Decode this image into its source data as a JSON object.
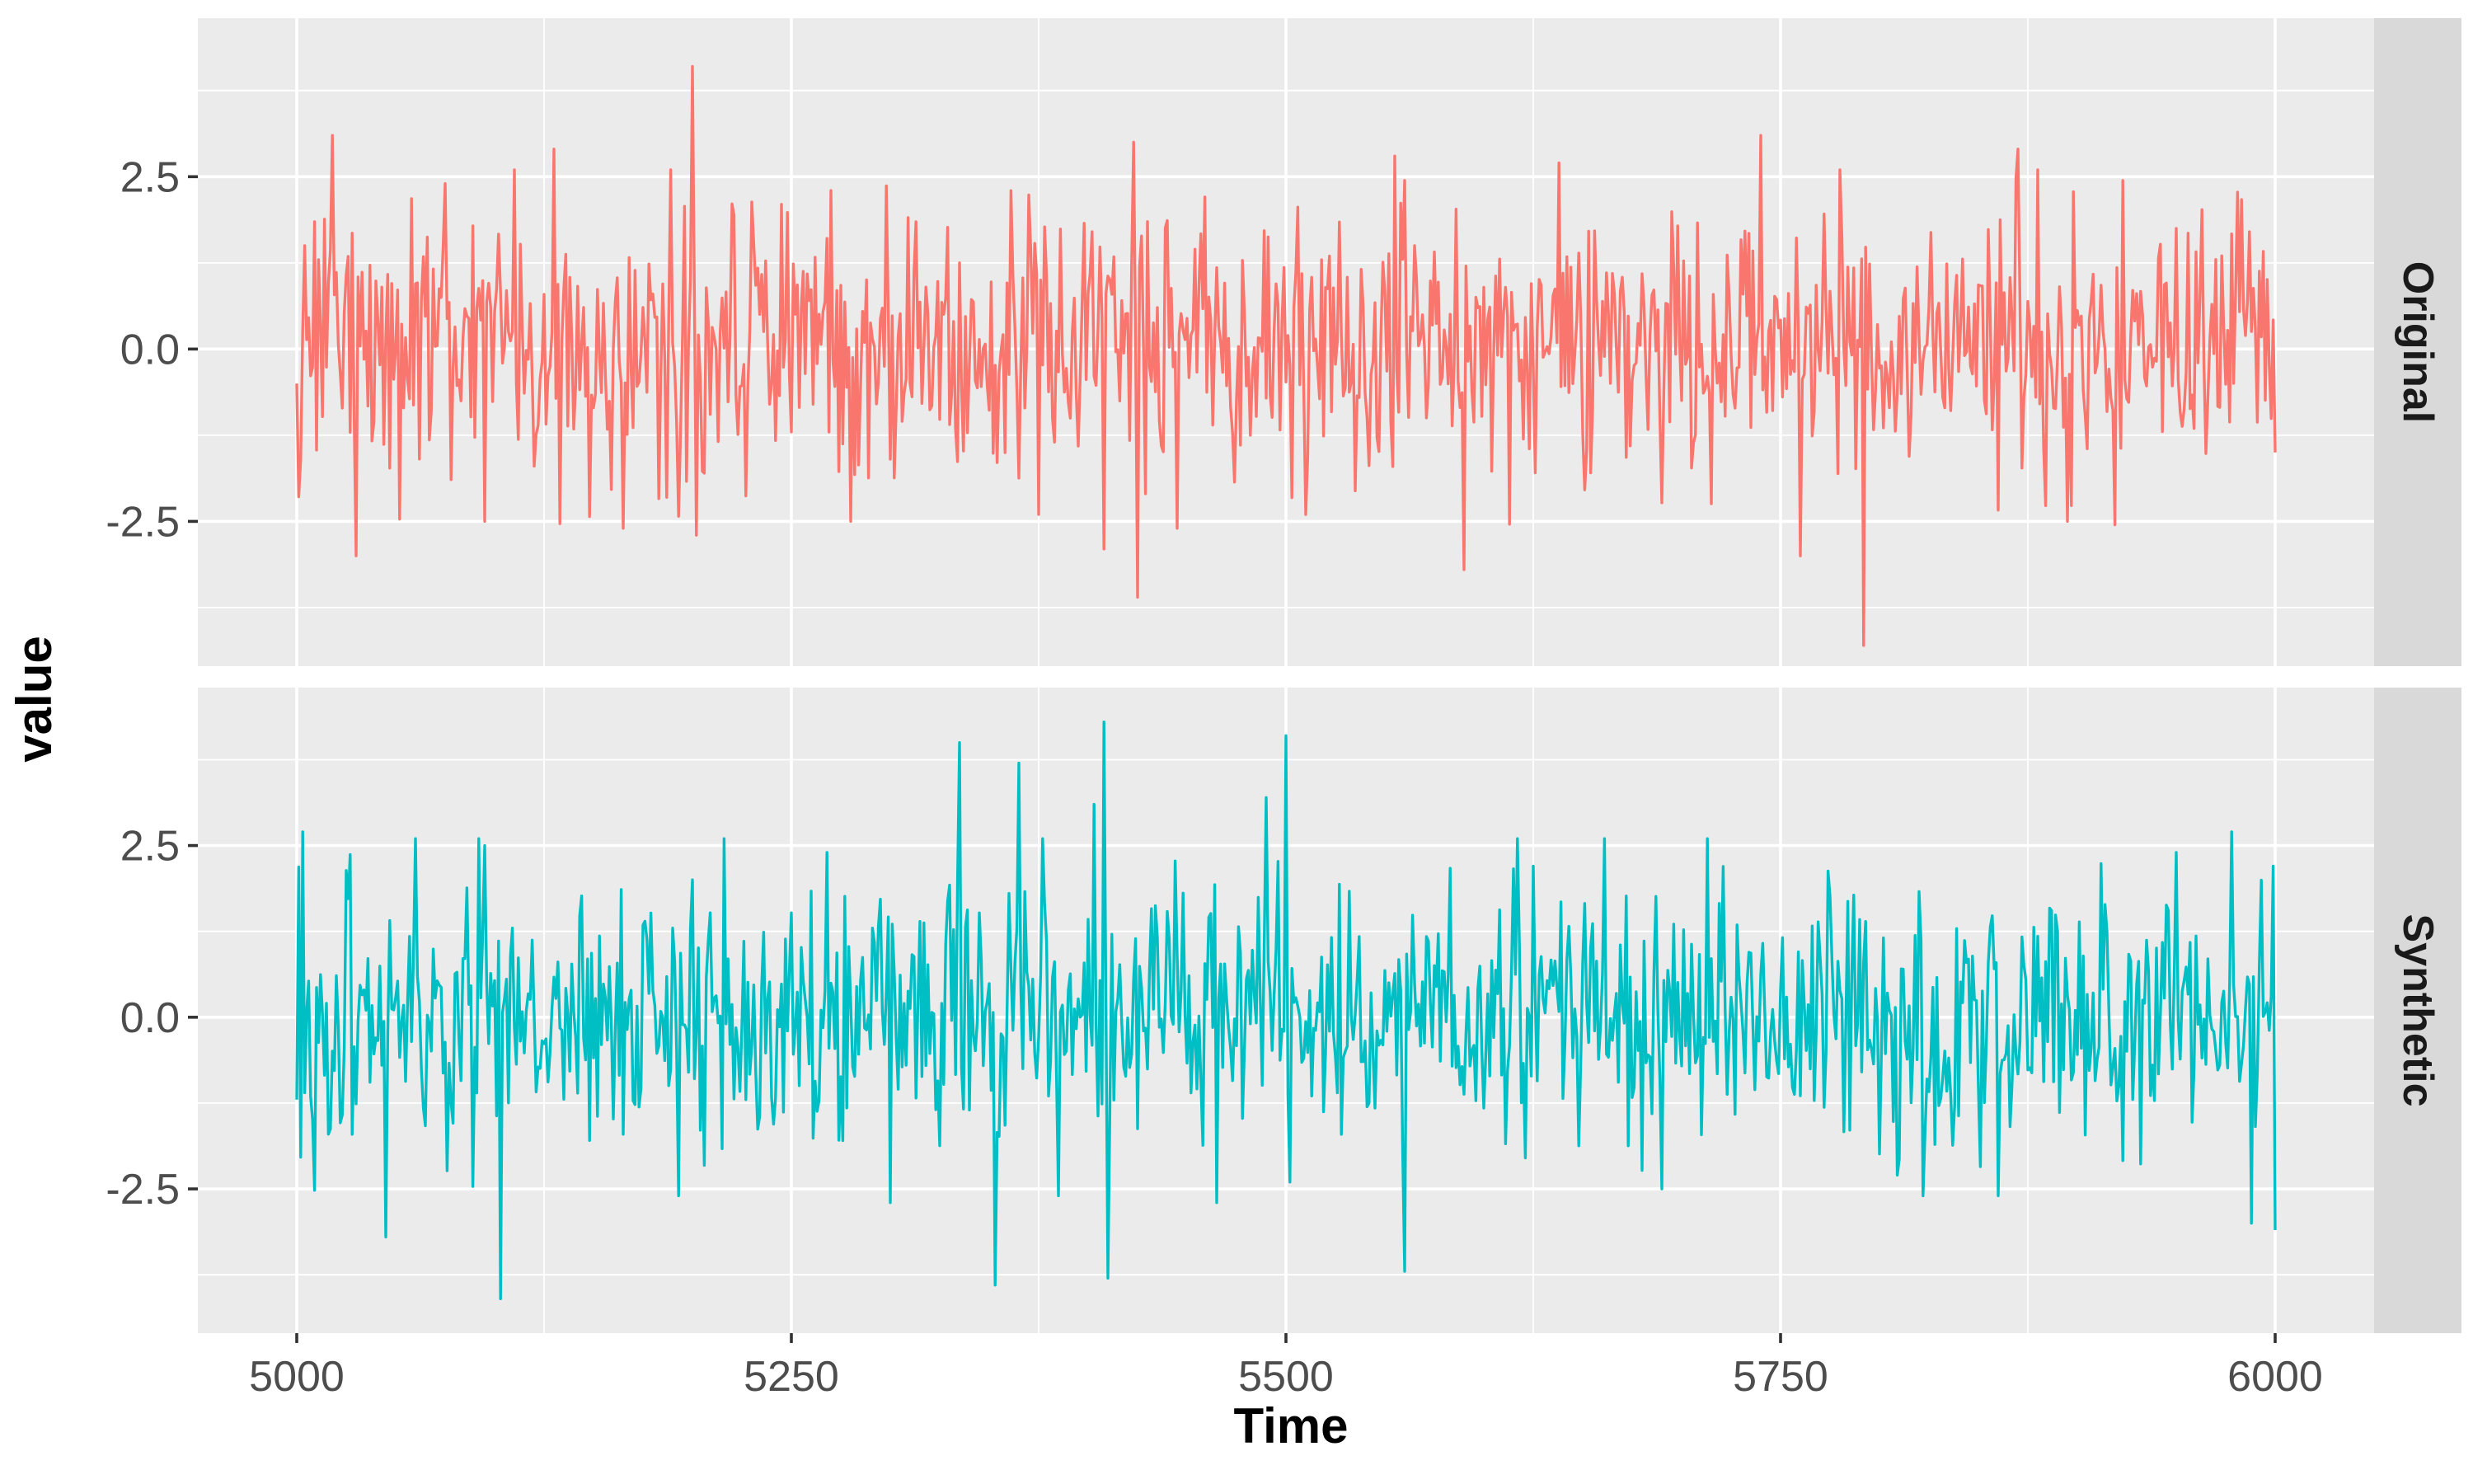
{
  "chart_data": {
    "type": "line",
    "facet": "rows",
    "xlabel": "Time",
    "ylabel": "value",
    "xlim": [
      4950,
      6050
    ],
    "ylim": [
      -4.6,
      4.8
    ],
    "x_ticks": [
      5000,
      5250,
      5500,
      5750,
      6000
    ],
    "x_tick_labels": [
      "5000",
      "5250",
      "5500",
      "5750",
      "6000"
    ],
    "y_ticks": [
      -2.5,
      0.0,
      2.5
    ],
    "y_tick_labels": [
      "-2.5",
      "0.0",
      "2.5"
    ],
    "grid": true,
    "legend": "none",
    "n_points": 1001,
    "x_start": 5000,
    "x_end": 6000,
    "panels": [
      {
        "strip_label": "Original",
        "color": "#F8766D",
        "summary": {
          "mean": 0.0,
          "sd": 1.0
        },
        "notable_points": [
          {
            "x": 5000,
            "y": -0.5
          },
          {
            "x": 5002,
            "y": -1.6
          },
          {
            "x": 5004,
            "y": 1.5
          },
          {
            "x": 5018,
            "y": 3.1
          },
          {
            "x": 5030,
            "y": -3.0
          },
          {
            "x": 5075,
            "y": 2.4
          },
          {
            "x": 5095,
            "y": -2.5
          },
          {
            "x": 5130,
            "y": 2.9
          },
          {
            "x": 5165,
            "y": -2.6
          },
          {
            "x": 5200,
            "y": 4.1
          },
          {
            "x": 5202,
            "y": -2.7
          },
          {
            "x": 5245,
            "y": 2.1
          },
          {
            "x": 5270,
            "y": 2.3
          },
          {
            "x": 5280,
            "y": -2.5
          },
          {
            "x": 5375,
            "y": -2.4
          },
          {
            "x": 5408,
            "y": -2.9
          },
          {
            "x": 5423,
            "y": 3.0
          },
          {
            "x": 5425,
            "y": -3.6
          },
          {
            "x": 5510,
            "y": -2.4
          },
          {
            "x": 5555,
            "y": 2.8
          },
          {
            "x": 5590,
            "y": -3.2
          },
          {
            "x": 5638,
            "y": 2.7
          },
          {
            "x": 5740,
            "y": 3.1
          },
          {
            "x": 5760,
            "y": -3.0
          },
          {
            "x": 5780,
            "y": 2.6
          },
          {
            "x": 5792,
            "y": -4.3
          },
          {
            "x": 5870,
            "y": 2.9
          },
          {
            "x": 5895,
            "y": -2.5
          },
          {
            "x": 5970,
            "y": 1.3
          },
          {
            "x": 6000,
            "y": -1.5
          }
        ]
      },
      {
        "strip_label": "Synthetic",
        "color": "#00BFC4",
        "summary": {
          "mean": 0.0,
          "sd": 1.0
        },
        "notable_points": [
          {
            "x": 5000,
            "y": -1.2
          },
          {
            "x": 5003,
            "y": 2.7
          },
          {
            "x": 5045,
            "y": -3.2
          },
          {
            "x": 5060,
            "y": 2.6
          },
          {
            "x": 5095,
            "y": 2.5
          },
          {
            "x": 5103,
            "y": -4.1
          },
          {
            "x": 5200,
            "y": 2.0
          },
          {
            "x": 5268,
            "y": 2.4
          },
          {
            "x": 5300,
            "y": -2.7
          },
          {
            "x": 5335,
            "y": 4.0
          },
          {
            "x": 5353,
            "y": -3.9
          },
          {
            "x": 5365,
            "y": 3.7
          },
          {
            "x": 5385,
            "y": -2.6
          },
          {
            "x": 5403,
            "y": 3.1
          },
          {
            "x": 5408,
            "y": 4.3
          },
          {
            "x": 5410,
            "y": -3.8
          },
          {
            "x": 5465,
            "y": -2.7
          },
          {
            "x": 5490,
            "y": 3.2
          },
          {
            "x": 5500,
            "y": 4.1
          },
          {
            "x": 5502,
            "y": -2.4
          },
          {
            "x": 5560,
            "y": -3.7
          },
          {
            "x": 5625,
            "y": 2.2
          },
          {
            "x": 5690,
            "y": -2.5
          },
          {
            "x": 5860,
            "y": -2.6
          },
          {
            "x": 5950,
            "y": 2.4
          },
          {
            "x": 5978,
            "y": 2.7
          },
          {
            "x": 5988,
            "y": -3.0
          },
          {
            "x": 5999,
            "y": 2.2
          },
          {
            "x": 6000,
            "y": -3.1
          }
        ]
      }
    ]
  }
}
